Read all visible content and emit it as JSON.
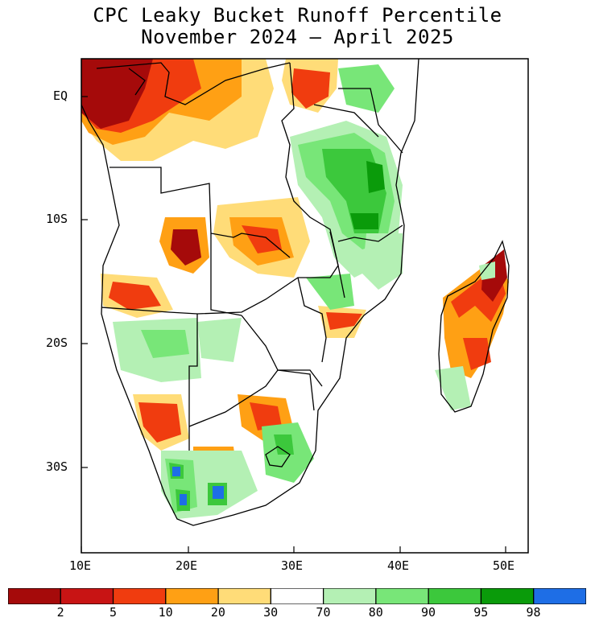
{
  "title": {
    "line1": "CPC Leaky Bucket Runoff Percentile",
    "line2": "November 2024 – April 2025"
  },
  "map": {
    "region": "Southern Africa",
    "lon_range": [
      10,
      52
    ],
    "lat_range": [
      -37,
      3
    ],
    "lat_labels": [
      "EQ",
      "10S",
      "20S",
      "30S"
    ],
    "lon_labels": [
      "10E",
      "20E",
      "30E",
      "40E",
      "50E"
    ]
  },
  "legend": {
    "bins": [
      {
        "label": "",
        "color": "#a50a0a"
      },
      {
        "label": "2",
        "color": "#c81414"
      },
      {
        "label": "5",
        "color": "#f03c0f"
      },
      {
        "label": "10",
        "color": "#ffa014"
      },
      {
        "label": "20",
        "color": "#ffdc78"
      },
      {
        "label": "30",
        "color": "#ffffff"
      },
      {
        "label": "70",
        "color": "#b4f0b4"
      },
      {
        "label": "80",
        "color": "#78e678"
      },
      {
        "label": "90",
        "color": "#3cc83c"
      },
      {
        "label": "95",
        "color": "#0a9b0a"
      },
      {
        "label": "98",
        "color": "#1e6ee6"
      }
    ],
    "ticks": [
      "2",
      "5",
      "10",
      "20",
      "30",
      "70",
      "80",
      "90",
      "95",
      "98"
    ]
  }
}
